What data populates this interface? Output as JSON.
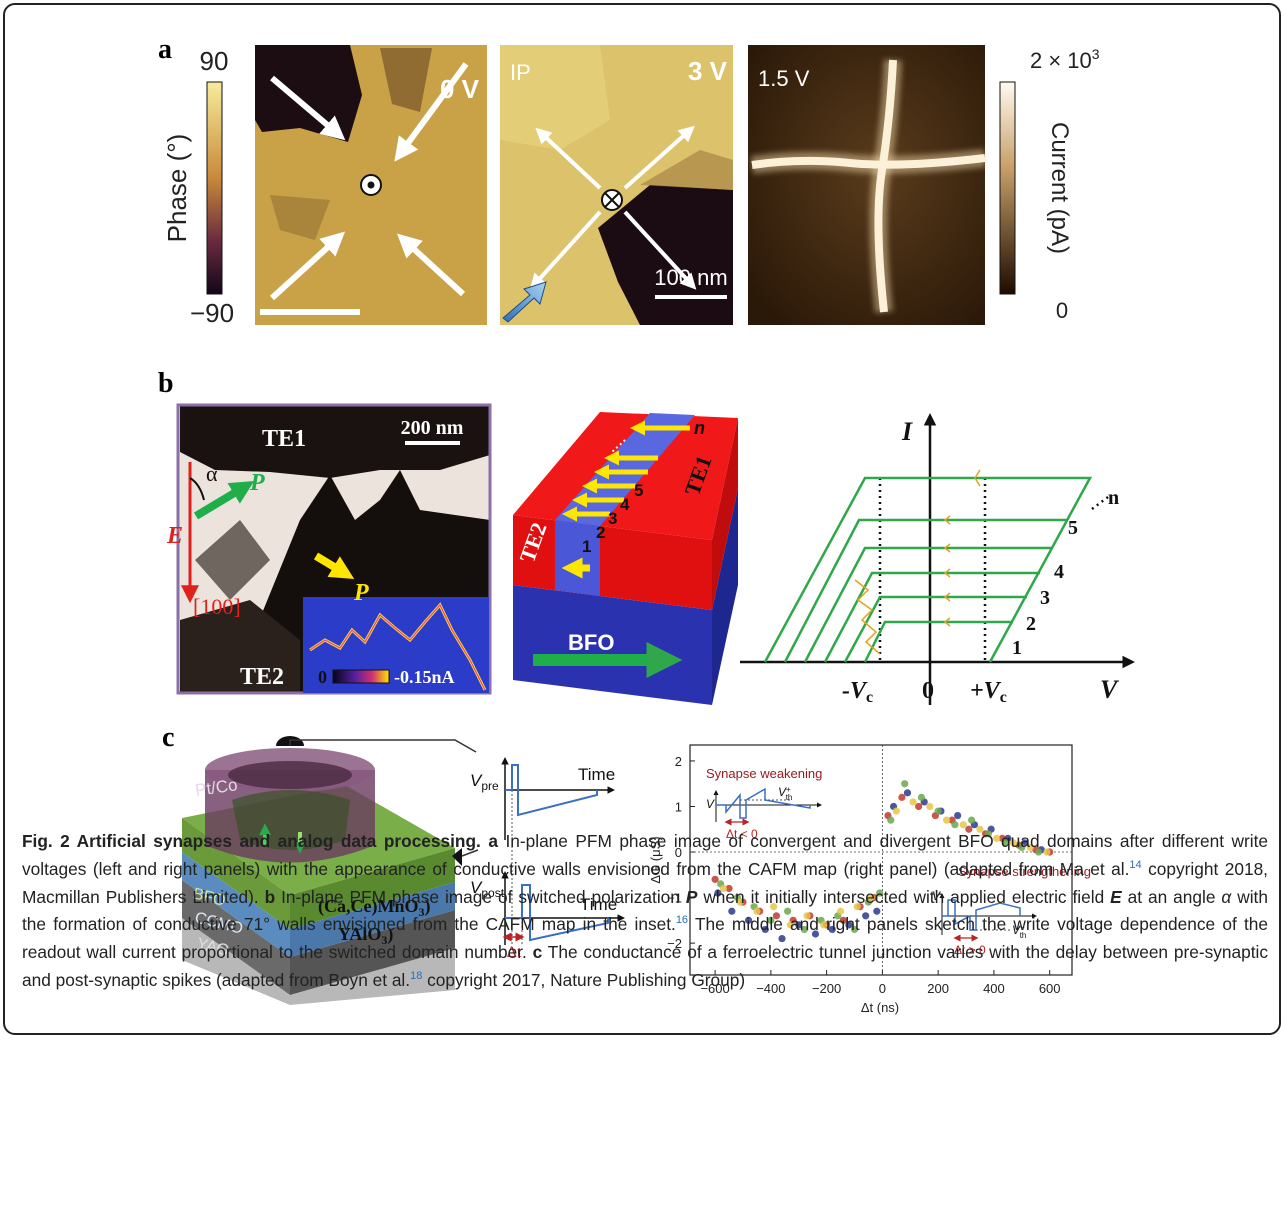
{
  "figure": {
    "a": {
      "label": "a",
      "phase_bar": {
        "max": "90",
        "min": "−90",
        "title": "Phase (°)"
      },
      "left": {
        "voltage": "0 V"
      },
      "middle": {
        "mode": "IP",
        "voltage": "3 V",
        "scale": "100 nm"
      },
      "right": {
        "voltage": "1.5 V"
      },
      "current_bar": {
        "max": "2 × 10",
        "max_exp": "3",
        "min": "0",
        "title": "Current (pA)"
      }
    },
    "b": {
      "label": "b",
      "image": {
        "te1": "TE1",
        "scale": "200 nm",
        "alpha": "α",
        "p_green": "P",
        "e": "E",
        "direction": "[100]",
        "p_yellow": "P",
        "te2": "TE2",
        "inset_min": "0",
        "inset_max": "-0.15nA"
      },
      "schematic": {
        "te2": "TE2",
        "te1": "TE1",
        "n": "n",
        "steps": [
          "1",
          "2",
          "3",
          "4",
          "5"
        ],
        "bfo": "BFO"
      },
      "iv": {
        "i": "I",
        "v": "V",
        "neg_vc": "-V",
        "neg_vc_sub": "c",
        "zero": "0",
        "pos_vc": "+V",
        "pos_vc_sub": "c",
        "n": "n",
        "steps": [
          "1",
          "2",
          "3",
          "4",
          "5"
        ]
      }
    },
    "c": {
      "label": "c",
      "device": {
        "electrode": "Pt/Co",
        "bfo": "BFO",
        "ccmo": "CCMO",
        "yao": "YAO",
        "ccmo_formula": "(Ca,Ce)MnO",
        "ccmo_sub": "3",
        "ccmo_close": ")",
        "yao_formula": "YAlO",
        "yao_sub": "3",
        "yao_close": ")"
      },
      "pulses": {
        "v_pre": "V",
        "pre": "pre",
        "time_pre": "Time",
        "v_post": "V",
        "post": "post",
        "time_post": "Time",
        "delta_t": "Δt"
      }
    }
  },
  "chart_data": {
    "type": "scatter",
    "xlabel": "Δt (ns)",
    "ylabel": "ΔG (μS)",
    "xlim": [
      -690,
      680
    ],
    "ylim": [
      -2.7,
      2.35
    ],
    "xticks": [
      {
        "value": -600,
        "label": "−600"
      },
      {
        "value": -400,
        "label": "−400"
      },
      {
        "value": -200,
        "label": "−200"
      },
      0,
      200,
      400,
      600
    ],
    "yticks": [
      {
        "value": -2,
        "label": "−2"
      },
      {
        "value": -1,
        "label": "−1"
      },
      0,
      1,
      2
    ],
    "annotations": {
      "weakening": "Synapse weakening",
      "strengthening": "Synapse strengthening",
      "w_v": "V",
      "w_vth": "V",
      "w_vth_sup": "+",
      "w_vth_sub": "th",
      "w_dt": "Δt < 0",
      "s_v": "V",
      "s_vth": "V",
      "s_vth_sup": "−",
      "s_vth_sub": "th",
      "s_dt": "Δt > 0"
    },
    "series": [
      {
        "color": "#2b3a8c",
        "x": [
          -590,
          -540,
          -480,
          -420,
          -360,
          -300,
          -240,
          -180,
          -120,
          -60,
          -20,
          40,
          90,
          150,
          210,
          270,
          330,
          390,
          450,
          510,
          570
        ],
        "values": [
          -0.9,
          -1.3,
          -1.5,
          -1.7,
          -1.9,
          -1.6,
          -1.8,
          -1.7,
          -1.6,
          -1.4,
          -1.3,
          1.0,
          1.3,
          1.1,
          0.9,
          0.8,
          0.6,
          0.5,
          0.3,
          0.2,
          0.05
        ]
      },
      {
        "color": "#c0392b",
        "x": [
          -600,
          -550,
          -500,
          -440,
          -380,
          -320,
          -260,
          -200,
          -140,
          -80,
          -30,
          20,
          70,
          130,
          190,
          250,
          310,
          370,
          430,
          490,
          550,
          600
        ],
        "values": [
          -0.6,
          -0.8,
          -1.1,
          -1.3,
          -1.4,
          -1.5,
          -1.4,
          -1.6,
          -1.5,
          -1.2,
          -1.0,
          0.8,
          1.2,
          1.0,
          0.8,
          0.7,
          0.5,
          0.4,
          0.3,
          0.15,
          0.05,
          0
        ]
      },
      {
        "color": "#6aa84f",
        "x": [
          -580,
          -520,
          -460,
          -400,
          -340,
          -280,
          -220,
          -160,
          -100,
          -50,
          -10,
          30,
          80,
          140,
          200,
          260,
          320,
          380,
          440,
          500,
          560
        ],
        "values": [
          -0.7,
          -1.0,
          -1.2,
          -1.5,
          -1.3,
          -1.7,
          -1.5,
          -1.4,
          -1.7,
          -1.1,
          -0.9,
          0.7,
          1.5,
          1.2,
          0.9,
          0.6,
          0.7,
          0.4,
          0.2,
          0.1,
          0
        ]
      },
      {
        "color": "#e8c547",
        "x": [
          -570,
          -510,
          -450,
          -390,
          -330,
          -270,
          -210,
          -150,
          -90,
          -40,
          50,
          110,
          170,
          230,
          290,
          350,
          410,
          470,
          530,
          590
        ],
        "values": [
          -0.8,
          -1.1,
          -1.3,
          -1.2,
          -1.6,
          -1.4,
          -1.6,
          -1.3,
          -1.2,
          -1.0,
          0.9,
          1.1,
          1.0,
          0.7,
          0.6,
          0.5,
          0.3,
          0.2,
          0.1,
          0
        ]
      }
    ]
  },
  "caption": {
    "title": "Fig. 2 Artificial synapses and analog data processing.",
    "a_label": "a",
    "a_text1": "In-plane PFM phase image of convergent and divergent BFO quad domains after different write voltages (left and right panels) with the appearance of conductive walls envisioned from the CAFM map (right panel) (adapted from Ma et al.",
    "a_ref": "14",
    "a_text2": "copyright 2018, Macmillan Publishers Limited).",
    "b_label": "b",
    "b_text1": "In-plane PFM phase image of switched polarization",
    "b_p": "P",
    "b_text2": "when it initially intersected with applied electric field",
    "b_e": "E",
    "b_text3": "at an angle",
    "b_alpha": "α",
    "b_text4": "with the formation of conductive 71° walls envisioned from the CAFM map in the inset.",
    "b_ref": "16",
    "b_text5": "The middle and right panels sketch the write voltage dependence of the readout wall current proportional to the switched domain number.",
    "c_label": "c",
    "c_text1": "The conductance of a ferroelectric tunnel junction varies with the delay between pre-synaptic and post-synaptic spikes (adapted from Boyn et al.",
    "c_ref": "18",
    "c_text2": "copyright 2017, Nature Publishing Group)"
  }
}
